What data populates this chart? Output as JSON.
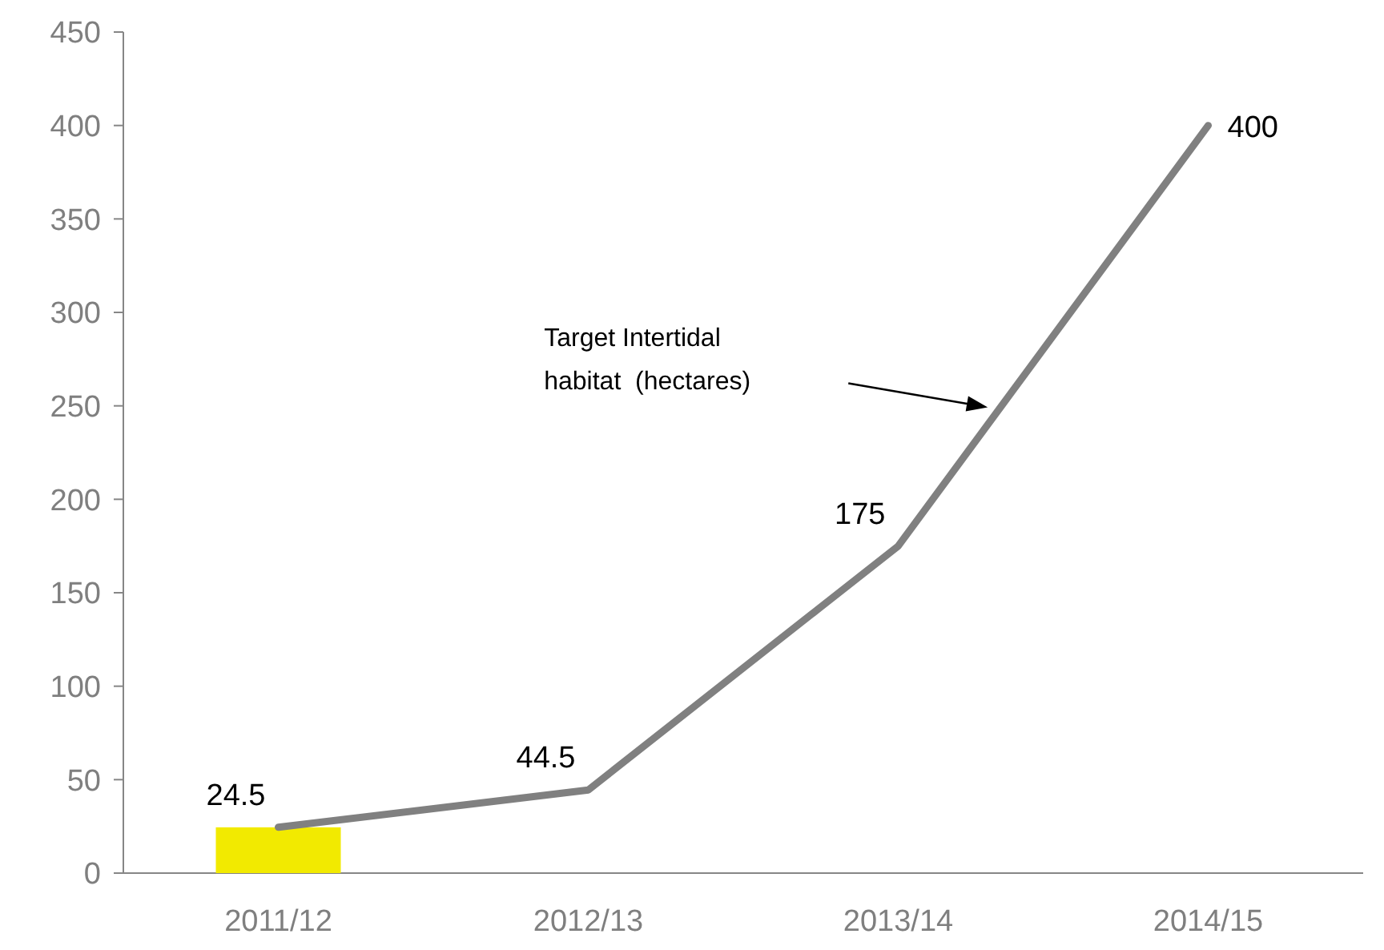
{
  "chart_data": {
    "type": "line",
    "categories": [
      "2011/12",
      "2012/13",
      "2013/14",
      "2014/15"
    ],
    "series": [
      {
        "type": "bar",
        "color": "#f2ea00",
        "values": [
          24.5,
          null,
          null,
          null
        ]
      },
      {
        "name": "Target Intertidal habitat  (hectares)",
        "color": "#808080",
        "values": [
          24.5,
          44.5,
          175,
          400
        ],
        "value_labels": [
          "24.5",
          "44.5",
          "175",
          "400"
        ]
      }
    ],
    "ylim": [
      0,
      450
    ],
    "yticks": [
      0,
      50,
      100,
      150,
      200,
      250,
      300,
      350,
      400,
      450
    ],
    "grid": false,
    "line_style": "solid"
  }
}
